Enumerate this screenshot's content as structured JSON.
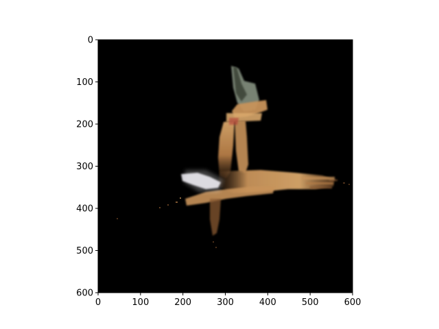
{
  "plot": {
    "background_color": "#000000",
    "axis_color": "#000000",
    "xlim": [
      0,
      600
    ],
    "ylim": [
      600,
      0
    ],
    "y_inverted": true,
    "x_ticks": [
      {
        "value": 0,
        "label": "0"
      },
      {
        "value": 100,
        "label": "100"
      },
      {
        "value": 200,
        "label": "200"
      },
      {
        "value": 300,
        "label": "300"
      },
      {
        "value": 400,
        "label": "400"
      },
      {
        "value": 500,
        "label": "500"
      },
      {
        "value": 600,
        "label": "600"
      }
    ],
    "y_ticks": [
      {
        "value": 0,
        "label": "0"
      },
      {
        "value": 100,
        "label": "100"
      },
      {
        "value": 200,
        "label": "200"
      },
      {
        "value": 300,
        "label": "300"
      },
      {
        "value": 400,
        "label": "400"
      },
      {
        "value": 500,
        "label": "500"
      },
      {
        "value": 600,
        "label": "600"
      }
    ],
    "image_colors": {
      "tan": "#c8935a",
      "tan_light": "#d9a86c",
      "tan_dark": "#8a5a30",
      "gray": "#7f8a7a",
      "white_blob": "#e8e6ee",
      "red_accent": "#b03030"
    }
  }
}
